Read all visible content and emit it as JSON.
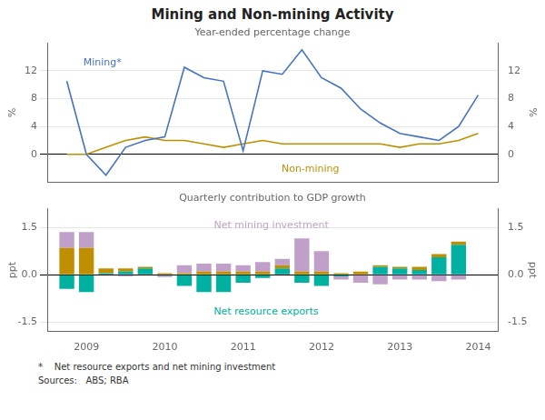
{
  "title": "Mining and Non-mining Activity",
  "annotations": [
    "*    Net resource exports and net mining investment",
    "Sources:   ABS; RBA"
  ],
  "chart_data": [
    {
      "type": "line",
      "subtitle": "Year-ended percentage change",
      "x": [
        2008.75,
        2009.0,
        2009.25,
        2009.5,
        2009.75,
        2010.0,
        2010.25,
        2010.5,
        2010.75,
        2011.0,
        2011.25,
        2011.5,
        2011.75,
        2012.0,
        2012.25,
        2012.5,
        2012.75,
        2013.0,
        2013.25,
        2013.5,
        2013.75,
        2014.0
      ],
      "series": [
        {
          "name": "Mining*",
          "color": "#4472C4",
          "values": [
            10.5,
            0.0,
            -3.0,
            1.0,
            2.0,
            2.5,
            12.5,
            11.0,
            10.5,
            0.5,
            12.0,
            11.5,
            15.0,
            11.0,
            9.5,
            6.5,
            4.5,
            3.0,
            2.5,
            2.0,
            4.0,
            8.5
          ]
        },
        {
          "name": "Non-mining",
          "color": "#BF8F00",
          "values": [
            0.0,
            0.0,
            1.0,
            2.0,
            2.5,
            2.0,
            2.0,
            1.5,
            1.0,
            1.5,
            2.0,
            1.5,
            1.5,
            1.5,
            1.5,
            1.5,
            1.5,
            1.0,
            1.5,
            1.5,
            2.0,
            3.0
          ]
        }
      ],
      "xlim": [
        2008.5,
        2014.25
      ],
      "ylim": [
        -4,
        16
      ],
      "yticks": [
        0,
        4,
        8,
        12
      ],
      "y2lim": [
        -4,
        16
      ],
      "y2ticks": [
        0,
        4,
        8,
        12
      ],
      "ylabel": "%",
      "y2label": "%",
      "grid": true,
      "tick_labels": "y"
    },
    {
      "type": "bar",
      "stacked": true,
      "subtitle": "Quarterly contribution to GDP growth",
      "x": [
        2008.75,
        2009.0,
        2009.25,
        2009.5,
        2009.75,
        2010.0,
        2010.25,
        2010.5,
        2010.75,
        2011.0,
        2011.25,
        2011.5,
        2011.75,
        2012.0,
        2012.25,
        2012.5,
        2012.75,
        2013.0,
        2013.25,
        2013.5,
        2013.75
      ],
      "series": [
        {
          "name": "Net resource exports",
          "color": "#00B0A0",
          "values": [
            -0.45,
            -0.55,
            0.05,
            0.1,
            0.2,
            -0.02,
            -0.35,
            -0.55,
            -0.55,
            -0.25,
            -0.1,
            0.2,
            -0.25,
            -0.35,
            -0.05,
            0.0,
            0.25,
            0.2,
            0.15,
            0.55,
            0.95
          ]
        },
        {
          "color": "#BF8F00",
          "values": [
            0.85,
            0.85,
            0.15,
            0.1,
            0.05,
            0.05,
            0.05,
            0.1,
            0.1,
            0.1,
            0.1,
            0.1,
            0.1,
            0.1,
            0.05,
            0.1,
            0.05,
            0.05,
            0.1,
            0.1,
            0.1
          ]
        },
        {
          "name": "Net mining investment",
          "color": "#C0A0C8",
          "values": [
            0.5,
            0.5,
            0.0,
            -0.05,
            0.0,
            -0.05,
            0.25,
            0.25,
            0.25,
            0.2,
            0.3,
            0.2,
            1.05,
            0.65,
            -0.1,
            -0.25,
            -0.3,
            -0.15,
            -0.15,
            -0.2,
            -0.15
          ]
        }
      ],
      "xlim": [
        2008.5,
        2014.25
      ],
      "xticks": [
        2009,
        2010,
        2011,
        2012,
        2013,
        2014
      ],
      "ylim": [
        -1.8,
        2.1
      ],
      "yticks": [
        -1.5,
        {
          "value": 0.0,
          "label": "0.0"
        },
        1.5
      ],
      "y2lim": [
        -1.8,
        2.1
      ],
      "y2ticks": [
        -1.5,
        {
          "value": 0.0,
          "label": "0.0"
        },
        1.5
      ],
      "ylabel": "ppt",
      "y2label": "ppt",
      "grid": true
    }
  ]
}
